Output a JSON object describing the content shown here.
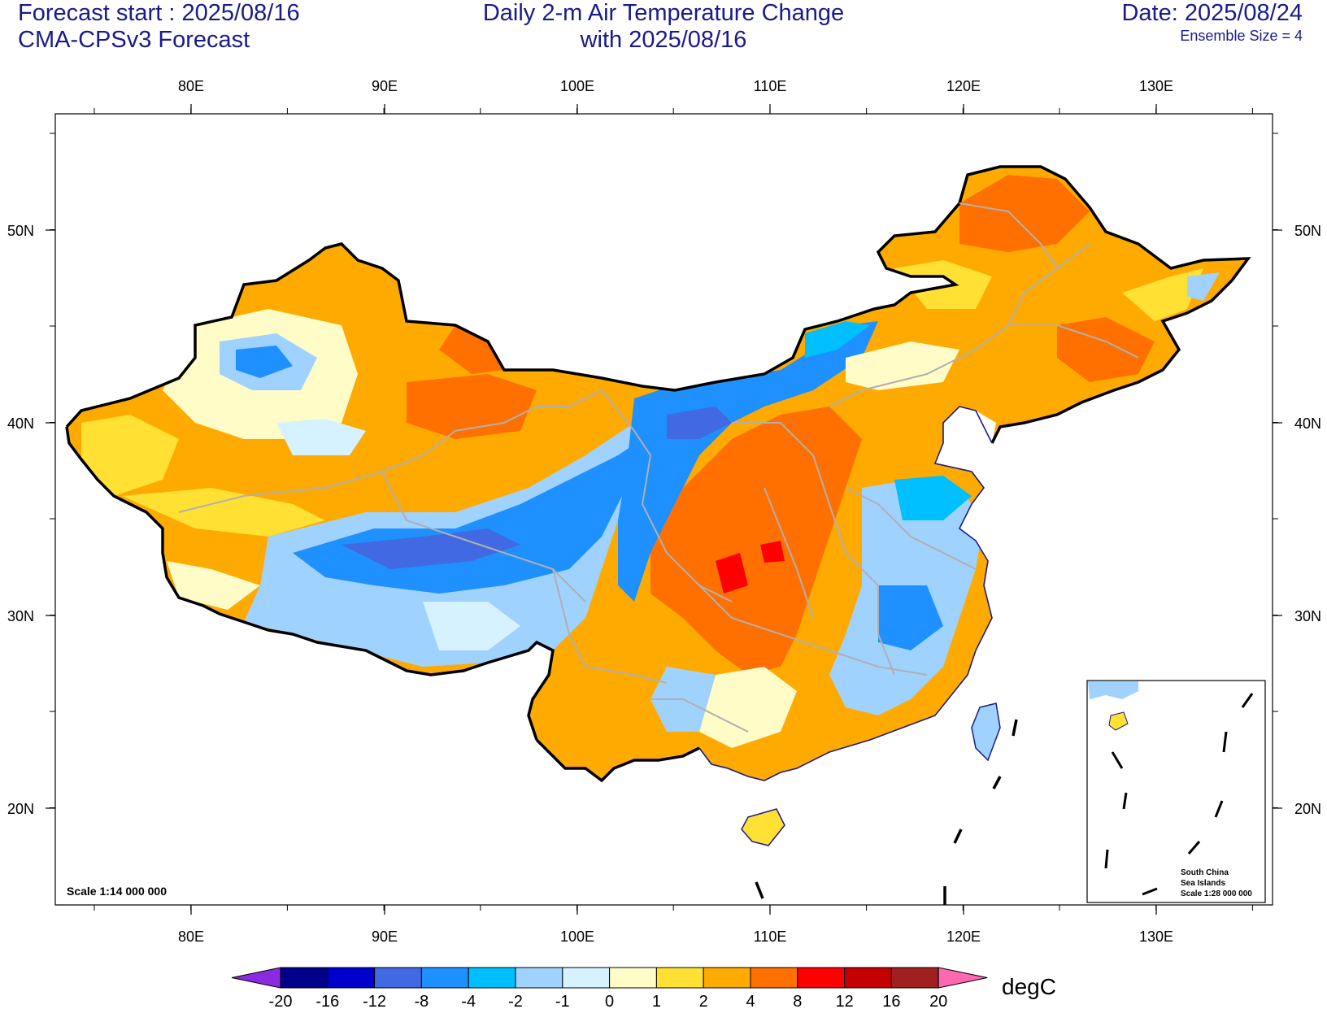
{
  "header": {
    "forecast_start": "Forecast start : 2025/08/16",
    "model": "CMA-CPSv3 Forecast",
    "title_line1": "Daily 2-m Air Temperature Change",
    "title_line2": "with 2025/08/16",
    "date": "Date: 2025/08/24",
    "ensemble": "Ensemble Size = 4"
  },
  "map": {
    "lon_ticks": [
      "80E",
      "90E",
      "100E",
      "110E",
      "120E",
      "130E"
    ],
    "lat_ticks": [
      "50N",
      "40N",
      "30N",
      "20N"
    ],
    "scale_text": "Scale 1:14 000 000",
    "inset": {
      "line1": "South China",
      "line2": "Sea Islands",
      "line3": "Scale 1:28 000 000"
    }
  },
  "colorbar": {
    "unit": "degC",
    "labels": [
      "-20",
      "-16",
      "-12",
      "-8",
      "-4",
      "-2",
      "-1",
      "0",
      "1",
      "2",
      "4",
      "8",
      "12",
      "16",
      "20"
    ],
    "colors": {
      "below": "#8a2be2",
      "bins": [
        "#00008b",
        "#0000cd",
        "#4169e1",
        "#1e90ff",
        "#00bfff",
        "#a0d2ff",
        "#d6f1ff",
        "#fffcc8",
        "#ffe033",
        "#ffaa00",
        "#ff7000",
        "#ff0000",
        "#c40000",
        "#a02020"
      ],
      "above": "#ff69b4"
    }
  },
  "fill_colors": {
    "deep_blue": "#4169e1",
    "blue": "#1e90ff",
    "sky": "#00bfff",
    "light_blue": "#a0d2ff",
    "pale_blue": "#d6f1ff",
    "cream": "#fffcc8",
    "yellow": "#ffe033",
    "orange": "#ffaa00",
    "dark_orange": "#ff7000",
    "red": "#ff0000",
    "border_gray": "#b0b0b0",
    "coast_navy": "#1a1a8c"
  }
}
